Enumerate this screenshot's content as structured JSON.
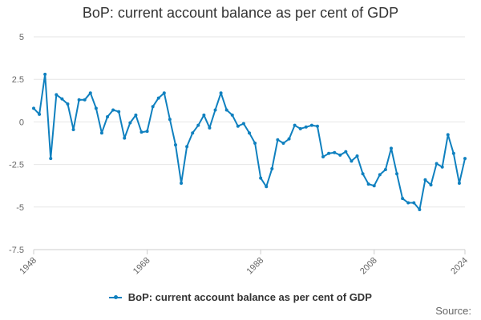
{
  "chart_data": {
    "type": "line",
    "title": "BoP: current account balance as per cent of GDP",
    "xlabel": "",
    "ylabel": "",
    "xlim": [
      1948,
      2024
    ],
    "ylim": [
      -7.5,
      5
    ],
    "y_ticks": [
      5,
      2.5,
      0,
      -2.5,
      -5,
      -7.5
    ],
    "y_tick_labels": [
      "5",
      "2.5",
      "0",
      "-2.5",
      "-5",
      "-7.5"
    ],
    "x_ticks": [
      1948,
      1968,
      1988,
      2008,
      2024
    ],
    "x_tick_labels": [
      "1948",
      "1968",
      "1988",
      "2008",
      "2024"
    ],
    "grid": true,
    "legend_position": "bottom",
    "series": [
      {
        "name": "BoP: current account balance as per cent of GDP",
        "color": "#0f80bf",
        "x": [
          1948,
          1949,
          1950,
          1951,
          1952,
          1953,
          1954,
          1955,
          1956,
          1957,
          1958,
          1959,
          1960,
          1961,
          1962,
          1963,
          1964,
          1965,
          1966,
          1967,
          1968,
          1969,
          1970,
          1971,
          1972,
          1973,
          1974,
          1975,
          1976,
          1977,
          1978,
          1979,
          1980,
          1981,
          1982,
          1983,
          1984,
          1985,
          1986,
          1987,
          1988,
          1989,
          1990,
          1991,
          1992,
          1993,
          1994,
          1995,
          1996,
          1997,
          1998,
          1999,
          2000,
          2001,
          2002,
          2003,
          2004,
          2005,
          2006,
          2007,
          2008,
          2009,
          2010,
          2011,
          2012,
          2013,
          2014,
          2015,
          2016,
          2017,
          2018,
          2019,
          2020,
          2021,
          2022,
          2023,
          2024
        ],
        "values": [
          0.8,
          0.45,
          2.8,
          -2.15,
          1.6,
          1.35,
          1.05,
          -0.45,
          1.3,
          1.3,
          1.7,
          0.8,
          -0.65,
          0.3,
          0.7,
          0.6,
          -0.95,
          -0.05,
          0.4,
          -0.6,
          -0.55,
          0.9,
          1.4,
          1.7,
          0.15,
          -1.35,
          -3.6,
          -1.45,
          -0.65,
          -0.2,
          0.4,
          -0.35,
          0.7,
          1.7,
          0.7,
          0.4,
          -0.25,
          -0.1,
          -0.65,
          -1.25,
          -3.3,
          -3.8,
          -2.75,
          -1.05,
          -1.25,
          -1.0,
          -0.2,
          -0.4,
          -0.3,
          -0.2,
          -0.25,
          -2.05,
          -1.85,
          -1.8,
          -1.95,
          -1.75,
          -2.3,
          -2.0,
          -3.05,
          -3.65,
          -3.75,
          -3.1,
          -2.8,
          -1.55,
          -3.05,
          -4.5,
          -4.75,
          -4.75,
          -5.15,
          -3.4,
          -3.7,
          -2.45,
          -2.65,
          -0.75,
          -1.85,
          -3.6,
          -2.15
        ]
      }
    ]
  },
  "legend": {
    "label": "BoP: current account balance as per cent of GDP"
  },
  "source_label": "Source:"
}
